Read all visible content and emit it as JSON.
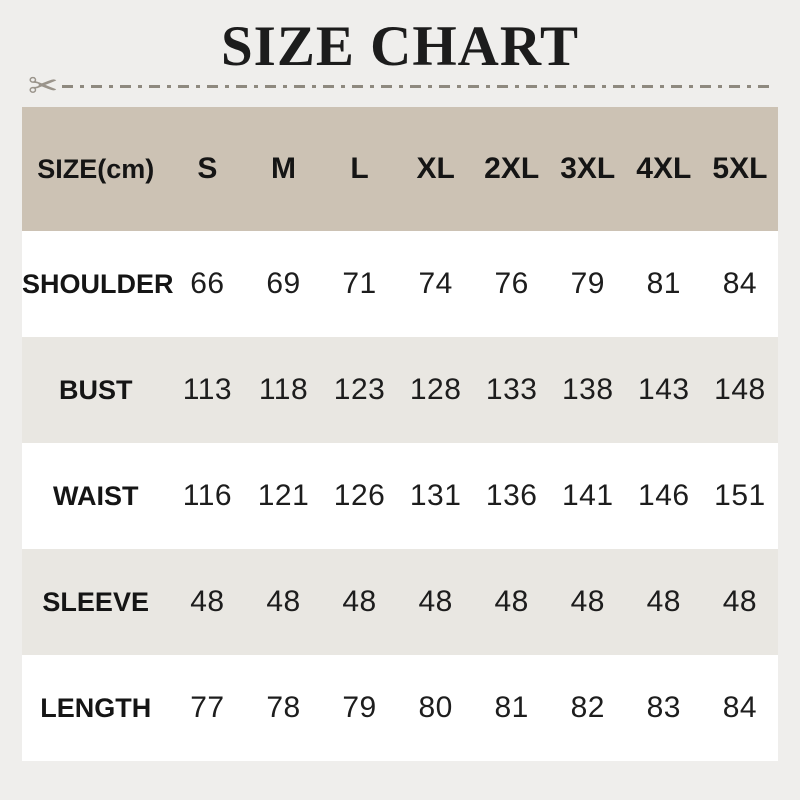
{
  "title": "SIZE CHART",
  "divider": {
    "scissors_icon": "✂"
  },
  "colors": {
    "page_bg": "#efeeec",
    "header_bg": "#ccc2b4",
    "row_bg": "#ffffff",
    "row_alt_bg": "#e9e7e2",
    "text": "#1a1a1a",
    "divider_line": "#8e897f",
    "scissors": "#9a948b"
  },
  "chart_data": {
    "type": "table",
    "title": "SIZE CHART",
    "unit_label": "SIZE(cm)",
    "columns": [
      "S",
      "M",
      "L",
      "XL",
      "2XL",
      "3XL",
      "4XL",
      "5XL"
    ],
    "rows": [
      {
        "label": "SHOULDER",
        "values": [
          66,
          69,
          71,
          74,
          76,
          79,
          81,
          84
        ]
      },
      {
        "label": "BUST",
        "values": [
          113,
          118,
          123,
          128,
          133,
          138,
          143,
          148
        ]
      },
      {
        "label": "WAIST",
        "values": [
          116,
          121,
          126,
          131,
          136,
          141,
          146,
          151
        ]
      },
      {
        "label": "SLEEVE",
        "values": [
          48,
          48,
          48,
          48,
          48,
          48,
          48,
          48
        ]
      },
      {
        "label": "LENGTH",
        "values": [
          77,
          78,
          79,
          80,
          81,
          82,
          83,
          84
        ]
      }
    ]
  }
}
